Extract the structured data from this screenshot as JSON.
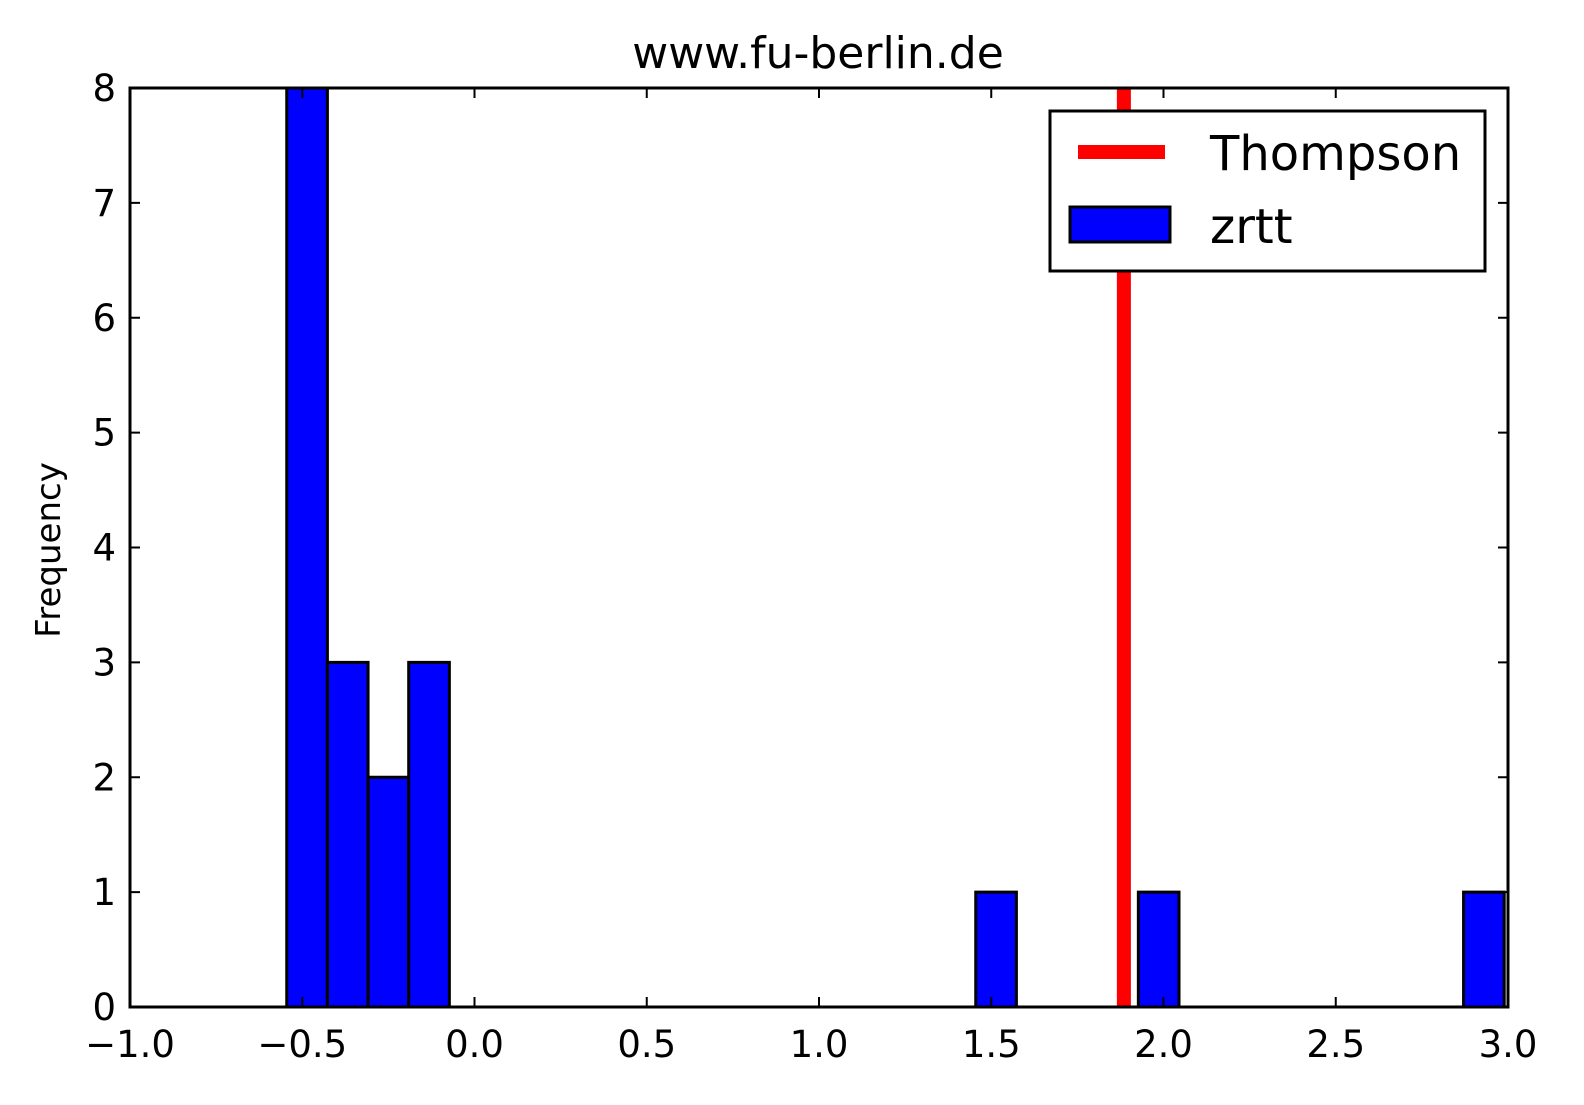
{
  "chart_data": {
    "type": "bar",
    "title": "www.fu-berlin.de",
    "xlabel": "",
    "ylabel": "Frequency",
    "xlim": [
      -1.0,
      3.0
    ],
    "ylim": [
      0,
      8
    ],
    "xticks": [
      "−1.0",
      "−0.5",
      "0.0",
      "0.5",
      "1.0",
      "1.5",
      "2.0",
      "2.5",
      "3.0"
    ],
    "xtick_values": [
      -1.0,
      -0.5,
      0.0,
      0.5,
      1.0,
      1.5,
      2.0,
      2.5,
      3.0
    ],
    "yticks": [
      "0",
      "1",
      "2",
      "3",
      "4",
      "5",
      "6",
      "7",
      "8"
    ],
    "ytick_values": [
      0,
      1,
      2,
      3,
      4,
      5,
      6,
      7,
      8
    ],
    "grid": false,
    "legend_position": "top-right",
    "series": [
      {
        "name": "zrtt",
        "kind": "histogram",
        "color": "#0000ff",
        "edge_color": "#000000",
        "bins": [
          {
            "x0": -0.545,
            "x1": -0.427,
            "count": 8
          },
          {
            "x0": -0.427,
            "x1": -0.309,
            "count": 3
          },
          {
            "x0": -0.309,
            "x1": -0.191,
            "count": 2
          },
          {
            "x0": -0.191,
            "x1": -0.073,
            "count": 3
          },
          {
            "x0": 1.455,
            "x1": 1.573,
            "count": 1
          },
          {
            "x0": 1.927,
            "x1": 2.045,
            "count": 1
          },
          {
            "x0": 2.871,
            "x1": 2.989,
            "count": 1
          }
        ]
      },
      {
        "name": "Thompson",
        "kind": "vline",
        "color": "#ff0000",
        "x": 1.885
      }
    ]
  }
}
